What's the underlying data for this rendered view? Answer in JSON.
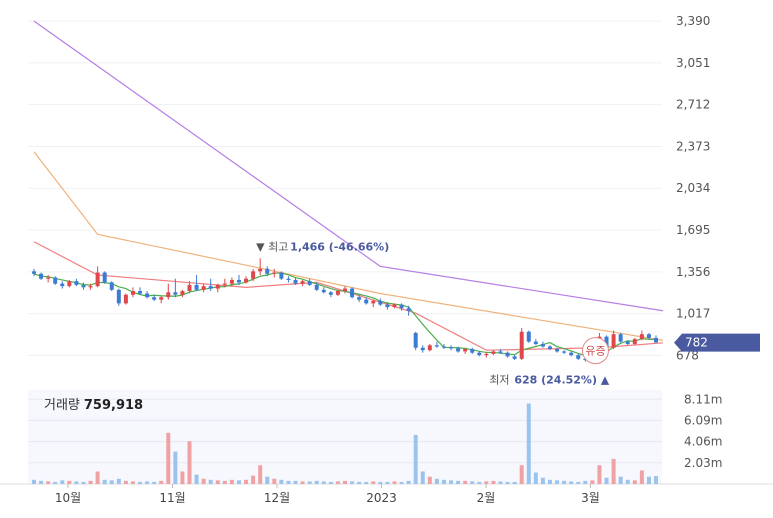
{
  "chart_data": [
    {
      "type": "candlestick",
      "yticks": [
        "3,390",
        "3,051",
        "2,712",
        "2,373",
        "2,034",
        "1,695",
        "1,356",
        "1,017",
        "678"
      ],
      "ylim": [
        600,
        3480
      ],
      "xticks": [
        "10월",
        "11월",
        "12월",
        "2023",
        "2월",
        "3월"
      ],
      "high_marker": {
        "prefix": "▼ 최고",
        "value": "1,466",
        "pct": "(-46.66%)"
      },
      "low_marker": {
        "prefix": "최저",
        "value": "628",
        "pct": "(24.52%)",
        "suffix": "▲"
      },
      "current_price": "782",
      "badge": "유증",
      "colors": {
        "up": "#e0464b",
        "down": "#3b7bd4",
        "ma5": "#4cae4c",
        "ma20": "#ef7f7f",
        "ma60": "#f0b27a",
        "ma120": "#b77ee6",
        "tag": "#4a5aa0"
      },
      "candles": [
        [
          1360,
          1380,
          1320,
          1340
        ],
        [
          1340,
          1350,
          1290,
          1300
        ],
        [
          1300,
          1330,
          1270,
          1310
        ],
        [
          1310,
          1320,
          1250,
          1260
        ],
        [
          1260,
          1280,
          1220,
          1240
        ],
        [
          1240,
          1290,
          1230,
          1280
        ],
        [
          1280,
          1300,
          1240,
          1250
        ],
        [
          1250,
          1270,
          1210,
          1230
        ],
        [
          1230,
          1260,
          1210,
          1240
        ],
        [
          1240,
          1400,
          1230,
          1350
        ],
        [
          1350,
          1360,
          1260,
          1270
        ],
        [
          1270,
          1280,
          1200,
          1210
        ],
        [
          1210,
          1220,
          1080,
          1100
        ],
        [
          1100,
          1180,
          1090,
          1170
        ],
        [
          1170,
          1230,
          1150,
          1200
        ],
        [
          1200,
          1230,
          1170,
          1180
        ],
        [
          1180,
          1200,
          1140,
          1150
        ],
        [
          1150,
          1170,
          1120,
          1130
        ],
        [
          1130,
          1160,
          1100,
          1150
        ],
        [
          1150,
          1260,
          1130,
          1190
        ],
        [
          1190,
          1300,
          1150,
          1170
        ],
        [
          1170,
          1210,
          1150,
          1200
        ],
        [
          1200,
          1280,
          1180,
          1250
        ],
        [
          1250,
          1330,
          1200,
          1210
        ],
        [
          1210,
          1260,
          1190,
          1240
        ],
        [
          1240,
          1300,
          1200,
          1220
        ],
        [
          1220,
          1260,
          1190,
          1250
        ],
        [
          1250,
          1300,
          1230,
          1260
        ],
        [
          1260,
          1310,
          1240,
          1290
        ],
        [
          1290,
          1330,
          1250,
          1270
        ],
        [
          1270,
          1320,
          1260,
          1300
        ],
        [
          1300,
          1380,
          1280,
          1360
        ],
        [
          1360,
          1466,
          1330,
          1380
        ],
        [
          1380,
          1400,
          1320,
          1340
        ],
        [
          1340,
          1380,
          1310,
          1350
        ],
        [
          1350,
          1360,
          1290,
          1300
        ],
        [
          1300,
          1320,
          1270,
          1290
        ],
        [
          1290,
          1310,
          1250,
          1260
        ],
        [
          1260,
          1290,
          1240,
          1280
        ],
        [
          1280,
          1300,
          1240,
          1250
        ],
        [
          1250,
          1270,
          1200,
          1210
        ],
        [
          1210,
          1230,
          1180,
          1190
        ],
        [
          1190,
          1200,
          1150,
          1170
        ],
        [
          1170,
          1210,
          1160,
          1200
        ],
        [
          1200,
          1240,
          1180,
          1220
        ],
        [
          1220,
          1230,
          1140,
          1150
        ],
        [
          1150,
          1170,
          1110,
          1130
        ],
        [
          1130,
          1150,
          1090,
          1100
        ],
        [
          1100,
          1130,
          1070,
          1120
        ],
        [
          1120,
          1140,
          1080,
          1090
        ],
        [
          1090,
          1110,
          1050,
          1070
        ],
        [
          1070,
          1100,
          1060,
          1090
        ],
        [
          1090,
          1100,
          1040,
          1060
        ],
        [
          1060,
          1080,
          1000,
          1040
        ],
        [
          860,
          870,
          720,
          740
        ],
        [
          740,
          760,
          700,
          720
        ],
        [
          720,
          770,
          710,
          760
        ],
        [
          760,
          790,
          740,
          750
        ],
        [
          750,
          770,
          730,
          745
        ],
        [
          745,
          760,
          720,
          735
        ],
        [
          735,
          750,
          700,
          710
        ],
        [
          710,
          740,
          690,
          730
        ],
        [
          730,
          740,
          690,
          700
        ],
        [
          700,
          715,
          670,
          680
        ],
        [
          680,
          700,
          660,
          690
        ],
        [
          690,
          720,
          680,
          710
        ],
        [
          710,
          730,
          690,
          700
        ],
        [
          700,
          710,
          660,
          670
        ],
        [
          670,
          680,
          640,
          650
        ],
        [
          650,
          900,
          640,
          870
        ],
        [
          870,
          880,
          780,
          790
        ],
        [
          790,
          810,
          760,
          770
        ],
        [
          770,
          790,
          740,
          750
        ],
        [
          750,
          760,
          720,
          730
        ],
        [
          730,
          740,
          700,
          710
        ],
        [
          710,
          720,
          690,
          700
        ],
        [
          700,
          710,
          670,
          680
        ],
        [
          680,
          690,
          640,
          650
        ],
        [
          650,
          660,
          628,
          640
        ],
        [
          640,
          680,
          630,
          670
        ],
        [
          670,
          860,
          660,
          830
        ],
        [
          830,
          840,
          720,
          740
        ],
        [
          740,
          880,
          730,
          850
        ],
        [
          850,
          860,
          780,
          790
        ],
        [
          790,
          800,
          760,
          770
        ],
        [
          770,
          820,
          760,
          810
        ],
        [
          810,
          880,
          800,
          850
        ],
        [
          850,
          860,
          810,
          820
        ],
        [
          820,
          840,
          790,
          782
        ]
      ],
      "volume_ticks": [
        "8.11m",
        "6.09m",
        "4.06m",
        "2.03m"
      ],
      "volume_max": 9000000,
      "volumes": [
        400000,
        300000,
        250000,
        200000,
        350000,
        300000,
        250000,
        200000,
        300000,
        1200000,
        400000,
        350000,
        500000,
        300000,
        250000,
        200000,
        250000,
        200000,
        300000,
        4900000,
        3100000,
        1200000,
        4100000,
        900000,
        500000,
        400000,
        350000,
        300000,
        400000,
        350000,
        400000,
        800000,
        1800000,
        700000,
        500000,
        400000,
        300000,
        300000,
        250000,
        250000,
        300000,
        250000,
        200000,
        250000,
        300000,
        250000,
        200000,
        200000,
        250000,
        200000,
        200000,
        250000,
        200000,
        300000,
        4700000,
        1200000,
        700000,
        500000,
        400000,
        350000,
        300000,
        300000,
        250000,
        200000,
        250000,
        300000,
        250000,
        200000,
        200000,
        1800000,
        7700000,
        1100000,
        600000,
        400000,
        350000,
        300000,
        250000,
        200000,
        300000,
        350000,
        1800000,
        600000,
        2400000,
        700000,
        400000,
        350000,
        1300000,
        700000,
        759918
      ],
      "ma120": [
        [
          0,
          3390
        ],
        [
          49,
          1400
        ],
        [
          89,
          1040
        ]
      ],
      "ma60": [
        [
          0,
          2330
        ],
        [
          9,
          1660
        ],
        [
          30,
          1410
        ],
        [
          49,
          1180
        ],
        [
          70,
          980
        ],
        [
          89,
          800
        ]
      ],
      "ma20": [
        [
          0,
          1600
        ],
        [
          9,
          1330
        ],
        [
          30,
          1230
        ],
        [
          40,
          1270
        ],
        [
          54,
          1020
        ],
        [
          64,
          720
        ],
        [
          80,
          740
        ],
        [
          89,
          780
        ]
      ],
      "volume": {
        "label": "거래량",
        "value": "759,918"
      }
    }
  ]
}
